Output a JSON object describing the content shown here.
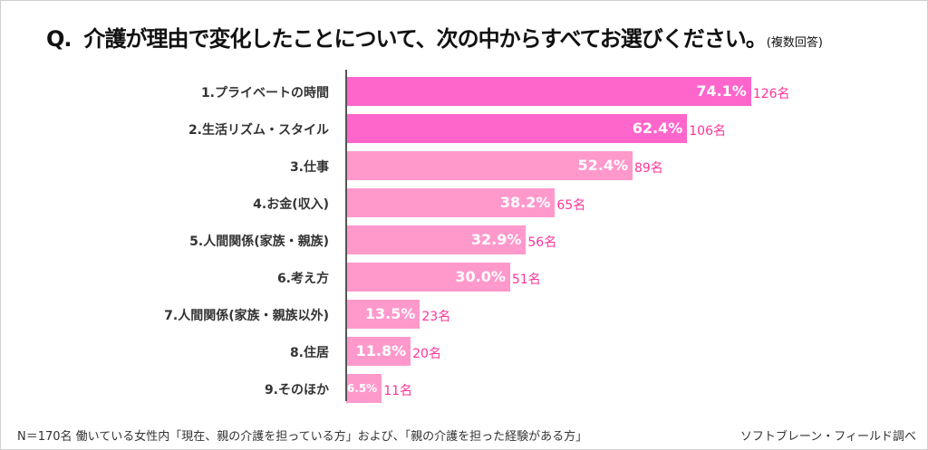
{
  "title": {
    "q": "Q.",
    "text": "介護が理由で変化したことについて、次の中からすべてお選びください。",
    "note": "(複数回答)"
  },
  "chart_data": {
    "type": "bar",
    "orientation": "horizontal",
    "categories": [
      "1.プライベートの時間",
      "2.生活リズム・スタイル",
      "3.仕事",
      "4.お金(収入)",
      "5.人間関係(家族・親族)",
      "6.考え方",
      "7.人間関係(家族・親族以外)",
      "8.住居",
      "9.そのほか"
    ],
    "values": [
      74.1,
      62.4,
      52.4,
      38.2,
      32.9,
      30.0,
      13.5,
      11.8,
      6.5
    ],
    "value_labels": [
      "74.1%",
      "62.4%",
      "52.4%",
      "38.2%",
      "32.9%",
      "30.0%",
      "13.5%",
      "11.8%",
      "6.5%"
    ],
    "counts": [
      "126名",
      "106名",
      "89名",
      "65名",
      "56名",
      "51名",
      "23名",
      "20名",
      "11名"
    ],
    "unit": "%",
    "xlim": [
      0,
      100
    ],
    "colors": {
      "top": "#ff66cc",
      "rest": "#ff99cc",
      "count": "#ff3399"
    }
  },
  "footer": {
    "left": "N＝170名 働いている女性内「現在、親の介護を担っている方」および、「親の介護を担った経験がある方」",
    "right": "ソフトブレーン・フィールド調べ"
  }
}
